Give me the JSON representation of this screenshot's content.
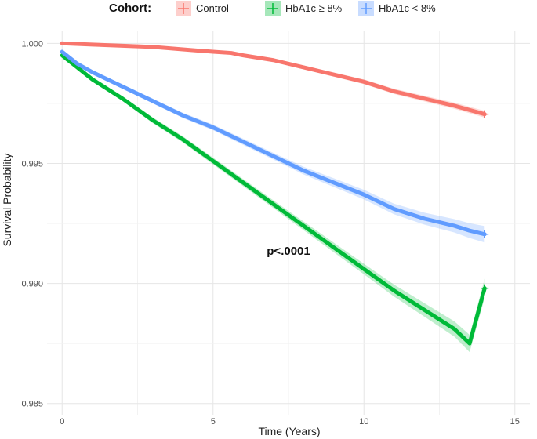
{
  "chart_data": {
    "type": "line",
    "title": "",
    "xlabel": "Time (Years)",
    "ylabel": "Survival Probability",
    "xlim": [
      -0.5,
      15.5
    ],
    "ylim": [
      0.9845,
      1.0005
    ],
    "x_ticks": [
      0,
      5,
      10,
      15
    ],
    "x_tick_labels": [
      "0",
      "5",
      "10",
      "15"
    ],
    "y_ticks": [
      0.985,
      0.99,
      0.995,
      1.0
    ],
    "y_tick_labels": [
      "0.985",
      "0.990",
      "0.995",
      "1.000"
    ],
    "grid": true,
    "legend": {
      "title": "Cohort:",
      "position": "top",
      "entries": [
        "Control",
        "HbA1c  ≥ 8%",
        "HbA1c < 8%"
      ]
    },
    "annotations": [
      {
        "text": "p<.0001",
        "x": 7.5,
        "y": 0.9912
      }
    ],
    "series": [
      {
        "name": "Control",
        "color": "#F8766D",
        "x": [
          0,
          1,
          2,
          3,
          4,
          5,
          5.6,
          6,
          7,
          8,
          9,
          10,
          11,
          12,
          13,
          14
        ],
        "y": [
          1.0,
          0.99995,
          0.9999,
          0.99985,
          0.99975,
          0.99965,
          0.9996,
          0.9995,
          0.9993,
          0.999,
          0.9987,
          0.9984,
          0.998,
          0.9977,
          0.9974,
          0.99705
        ],
        "ci_width": [
          0,
          3e-05,
          4e-05,
          5e-05,
          5e-05,
          6e-05,
          6e-05,
          7e-05,
          7e-05,
          8e-05,
          9e-05,
          0.0001,
          0.00011,
          0.00012,
          0.00013,
          0.00014
        ]
      },
      {
        "name": "HbA1c  ≥ 8%",
        "color": "#00BA38",
        "x": [
          0,
          0.5,
          1,
          2,
          3,
          4,
          5,
          6,
          7,
          8,
          9,
          10,
          11,
          12,
          13,
          13.5,
          14
        ],
        "y": [
          0.9995,
          0.999,
          0.9985,
          0.9977,
          0.9968,
          0.996,
          0.9951,
          0.9942,
          0.9933,
          0.9924,
          0.9915,
          0.9906,
          0.9897,
          0.9889,
          0.9881,
          0.9875,
          0.9898
        ],
        "ci_width": [
          5e-05,
          6e-05,
          8e-05,
          0.0001,
          0.00012,
          0.00013,
          0.00014,
          0.00015,
          0.00016,
          0.00018,
          0.0002,
          0.00022,
          0.00025,
          0.00028,
          0.00032,
          0.00036,
          0.0004
        ]
      },
      {
        "name": "HbA1c < 8%",
        "color": "#619CFF",
        "x": [
          0,
          0.5,
          1,
          2,
          3,
          4,
          5,
          6,
          7,
          8,
          9,
          10,
          11,
          12,
          13,
          13.5,
          14
        ],
        "y": [
          0.99965,
          0.99915,
          0.9988,
          0.9982,
          0.9976,
          0.997,
          0.9965,
          0.9959,
          0.9953,
          0.9947,
          0.9942,
          0.9937,
          0.9931,
          0.9927,
          0.9924,
          0.9922,
          0.99205
        ],
        "ci_width": [
          5e-05,
          6e-05,
          7e-05,
          9e-05,
          0.0001,
          0.00011,
          0.00012,
          0.00013,
          0.00014,
          0.00016,
          0.00018,
          0.0002,
          0.00022,
          0.00025,
          0.00028,
          0.00031,
          0.00034
        ]
      }
    ]
  }
}
